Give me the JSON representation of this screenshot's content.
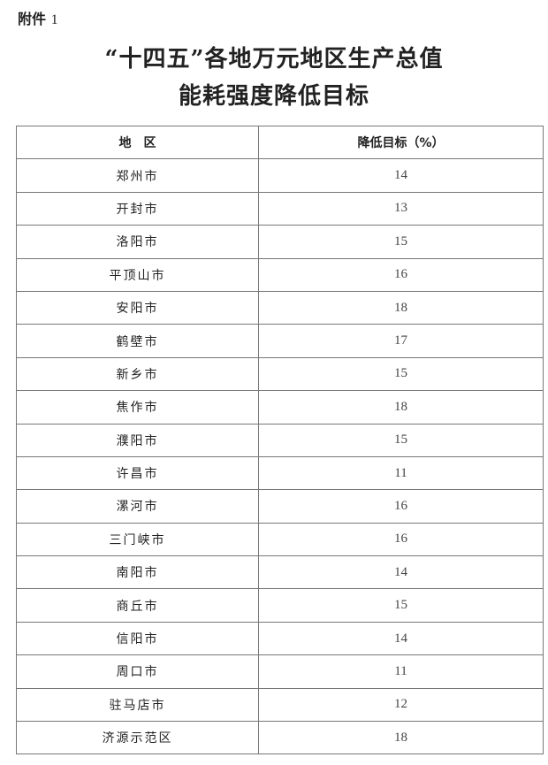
{
  "attachment": {
    "label": "附件",
    "number": "1"
  },
  "title": {
    "line1": "“十四五”各地万元地区生产总值",
    "line2": "能耗强度降低目标"
  },
  "table": {
    "headers": [
      "地　区",
      "降低目标（%）"
    ],
    "rows": [
      [
        "郑州市",
        "14"
      ],
      [
        "开封市",
        "13"
      ],
      [
        "洛阳市",
        "15"
      ],
      [
        "平顶山市",
        "16"
      ],
      [
        "安阳市",
        "18"
      ],
      [
        "鹤壁市",
        "17"
      ],
      [
        "新乡市",
        "15"
      ],
      [
        "焦作市",
        "18"
      ],
      [
        "濮阳市",
        "15"
      ],
      [
        "许昌市",
        "11"
      ],
      [
        "漯河市",
        "16"
      ],
      [
        "三门峡市",
        "16"
      ],
      [
        "南阳市",
        "14"
      ],
      [
        "商丘市",
        "15"
      ],
      [
        "信阳市",
        "14"
      ],
      [
        "周口市",
        "11"
      ],
      [
        "驻马店市",
        "12"
      ],
      [
        "济源示范区",
        "18"
      ]
    ]
  }
}
